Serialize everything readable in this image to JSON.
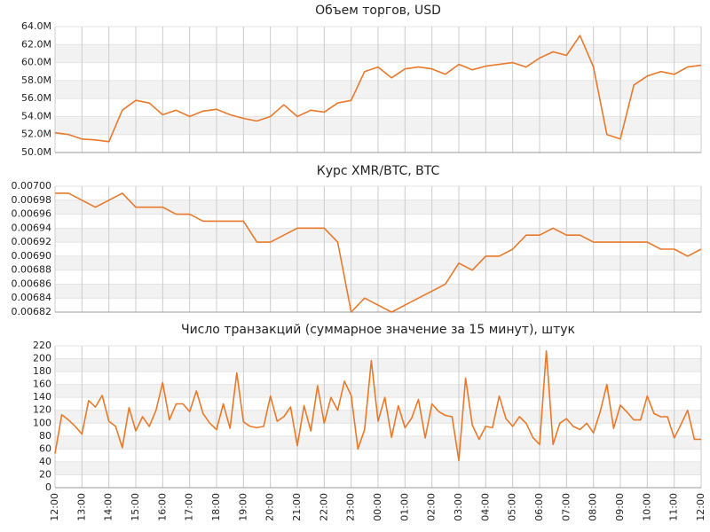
{
  "chart_data": [
    {
      "type": "line",
      "title": "Объем торгов, USD",
      "color": "#e8792b",
      "grid": true,
      "x": [
        12,
        12.5,
        13,
        13.5,
        14,
        14.5,
        15,
        15.5,
        16,
        16.5,
        17,
        17.5,
        18,
        18.5,
        19,
        19.5,
        20,
        20.5,
        21,
        21.5,
        22,
        22.5,
        23,
        23.5,
        24,
        24.5,
        25,
        25.5,
        26,
        26.5,
        27,
        27.5,
        28,
        28.5,
        29,
        29.5,
        30,
        30.5,
        31,
        31.5,
        32,
        32.5,
        33,
        33.5,
        34,
        34.5,
        35,
        35.5,
        36
      ],
      "values": [
        52200000,
        52000000,
        51500000,
        51400000,
        51200000,
        54700000,
        55800000,
        55500000,
        54200000,
        54700000,
        54000000,
        54600000,
        54800000,
        54200000,
        53800000,
        53500000,
        54000000,
        55300000,
        54000000,
        54700000,
        54500000,
        55500000,
        55800000,
        59000000,
        59500000,
        58300000,
        59300000,
        59500000,
        59300000,
        58700000,
        59800000,
        59200000,
        59600000,
        59800000,
        60000000,
        59500000,
        60500000,
        61200000,
        60800000,
        63000000,
        59500000,
        52000000,
        51500000,
        57500000,
        58500000,
        59000000,
        58700000,
        59500000,
        59700000
      ],
      "xlim": [
        12,
        36
      ],
      "xticks": [
        12,
        13,
        14,
        15,
        16,
        17,
        18,
        19,
        20,
        21,
        22,
        23,
        24,
        25,
        26,
        27,
        28,
        29,
        30,
        31,
        32,
        33,
        34,
        35,
        36
      ],
      "ylim": [
        50000000,
        64000000
      ],
      "yticks": [
        {
          "value": 50000000,
          "label": "50.0M"
        },
        {
          "value": 52000000,
          "label": "52.0M"
        },
        {
          "value": 54000000,
          "label": "54.0M"
        },
        {
          "value": 56000000,
          "label": "56.0M"
        },
        {
          "value": 58000000,
          "label": "58.0M"
        },
        {
          "value": 60000000,
          "label": "60.0M"
        },
        {
          "value": 62000000,
          "label": "62.0M"
        },
        {
          "value": 64000000,
          "label": "64.0M"
        }
      ]
    },
    {
      "type": "line",
      "title": "Курс XMR/BTC, BTC",
      "color": "#e8792b",
      "grid": true,
      "x": [
        12,
        12.5,
        13,
        13.5,
        14,
        14.5,
        15,
        15.5,
        16,
        16.5,
        17,
        17.5,
        18,
        18.5,
        19,
        19.5,
        20,
        20.5,
        21,
        21.5,
        22,
        22.5,
        23,
        23.5,
        24,
        24.5,
        25,
        25.5,
        26,
        26.5,
        27,
        27.5,
        28,
        28.5,
        29,
        29.5,
        30,
        30.5,
        31,
        31.5,
        32,
        32.5,
        33,
        33.5,
        34,
        34.5,
        35,
        35.5,
        36
      ],
      "values": [
        0.00699,
        0.00699,
        0.00698,
        0.00697,
        0.00698,
        0.00699,
        0.00697,
        0.00697,
        0.00697,
        0.00696,
        0.00696,
        0.00695,
        0.00695,
        0.00695,
        0.00695,
        0.00692,
        0.00692,
        0.00693,
        0.00694,
        0.00694,
        0.00694,
        0.00692,
        0.00682,
        0.00684,
        0.00683,
        0.00682,
        0.00683,
        0.00684,
        0.00685,
        0.00686,
        0.00689,
        0.00688,
        0.0069,
        0.0069,
        0.00691,
        0.00693,
        0.00693,
        0.00694,
        0.00693,
        0.00693,
        0.00692,
        0.00692,
        0.00692,
        0.00692,
        0.00692,
        0.00691,
        0.00691,
        0.0069,
        0.00691
      ],
      "xlim": [
        12,
        36
      ],
      "xticks": [
        12,
        13,
        14,
        15,
        16,
        17,
        18,
        19,
        20,
        21,
        22,
        23,
        24,
        25,
        26,
        27,
        28,
        29,
        30,
        31,
        32,
        33,
        34,
        35,
        36
      ],
      "ylim": [
        0.00682,
        0.007
      ],
      "yticks": [
        {
          "value": 0.00682,
          "label": "0.00682"
        },
        {
          "value": 0.00684,
          "label": "0.00684"
        },
        {
          "value": 0.00686,
          "label": "0.00686"
        },
        {
          "value": 0.00688,
          "label": "0.00688"
        },
        {
          "value": 0.0069,
          "label": "0.00690"
        },
        {
          "value": 0.00692,
          "label": "0.00692"
        },
        {
          "value": 0.00694,
          "label": "0.00694"
        },
        {
          "value": 0.00696,
          "label": "0.00696"
        },
        {
          "value": 0.00698,
          "label": "0.00698"
        },
        {
          "value": 0.007,
          "label": "0.00700"
        }
      ]
    },
    {
      "type": "line",
      "title": "Число транзакций (суммарное значение за 15 минут), штук",
      "color": "#e8792b",
      "grid": true,
      "x": [
        12,
        12.25,
        12.5,
        12.75,
        13,
        13.25,
        13.5,
        13.75,
        14,
        14.25,
        14.5,
        14.75,
        15,
        15.25,
        15.5,
        15.75,
        16,
        16.25,
        16.5,
        16.75,
        17,
        17.25,
        17.5,
        17.75,
        18,
        18.25,
        18.5,
        18.75,
        19,
        19.25,
        19.5,
        19.75,
        20,
        20.25,
        20.5,
        20.75,
        21,
        21.25,
        21.5,
        21.75,
        22,
        22.25,
        22.5,
        22.75,
        23,
        23.25,
        23.5,
        23.75,
        24,
        24.25,
        24.5,
        24.75,
        25,
        25.25,
        25.5,
        25.75,
        26,
        26.25,
        26.5,
        26.75,
        27,
        27.25,
        27.5,
        27.75,
        28,
        28.25,
        28.5,
        28.75,
        29,
        29.25,
        29.5,
        29.75,
        30,
        30.25,
        30.5,
        30.75,
        31,
        31.25,
        31.5,
        31.75,
        32,
        32.25,
        32.5,
        32.75,
        33,
        33.25,
        33.5,
        33.75,
        34,
        34.25,
        34.5,
        34.75,
        35,
        35.25,
        35.5,
        35.75,
        36
      ],
      "values": [
        53,
        113,
        105,
        95,
        83,
        135,
        125,
        143,
        103,
        95,
        62,
        124,
        88,
        110,
        95,
        120,
        163,
        105,
        130,
        130,
        118,
        150,
        115,
        100,
        90,
        130,
        92,
        178,
        102,
        95,
        93,
        95,
        142,
        103,
        110,
        125,
        65,
        127,
        88,
        158,
        100,
        140,
        120,
        165,
        143,
        60,
        90,
        197,
        103,
        140,
        78,
        127,
        93,
        108,
        137,
        77,
        130,
        118,
        112,
        110,
        42,
        170,
        97,
        75,
        95,
        93,
        142,
        107,
        95,
        110,
        100,
        78,
        67,
        212,
        67,
        100,
        107,
        95,
        90,
        100,
        85,
        118,
        160,
        92,
        128,
        117,
        105,
        105,
        142,
        115,
        110,
        110,
        77,
        98,
        120,
        75,
        75
      ],
      "xlim": [
        12,
        36
      ],
      "xticks": [
        {
          "value": 12,
          "label": "12:00"
        },
        {
          "value": 13,
          "label": "13:00"
        },
        {
          "value": 14,
          "label": "14:00"
        },
        {
          "value": 15,
          "label": "15:00"
        },
        {
          "value": 16,
          "label": "16:00"
        },
        {
          "value": 17,
          "label": "17:00"
        },
        {
          "value": 18,
          "label": "18:00"
        },
        {
          "value": 19,
          "label": "19:00"
        },
        {
          "value": 20,
          "label": "20:00"
        },
        {
          "value": 21,
          "label": "21:00"
        },
        {
          "value": 22,
          "label": "22:00"
        },
        {
          "value": 23,
          "label": "23:00"
        },
        {
          "value": 24,
          "label": "00:00"
        },
        {
          "value": 25,
          "label": "01:00"
        },
        {
          "value": 26,
          "label": "02:00"
        },
        {
          "value": 27,
          "label": "03:00"
        },
        {
          "value": 28,
          "label": "04:00"
        },
        {
          "value": 29,
          "label": "05:00"
        },
        {
          "value": 30,
          "label": "06:00"
        },
        {
          "value": 31,
          "label": "07:00"
        },
        {
          "value": 32,
          "label": "08:00"
        },
        {
          "value": 33,
          "label": "09:00"
        },
        {
          "value": 34,
          "label": "10:00"
        },
        {
          "value": 35,
          "label": "11:00"
        },
        {
          "value": 36,
          "label": "12:00"
        }
      ],
      "ylim": [
        0,
        220
      ],
      "yticks": [
        0,
        20,
        40,
        60,
        80,
        100,
        120,
        140,
        160,
        180,
        200,
        220
      ]
    }
  ]
}
